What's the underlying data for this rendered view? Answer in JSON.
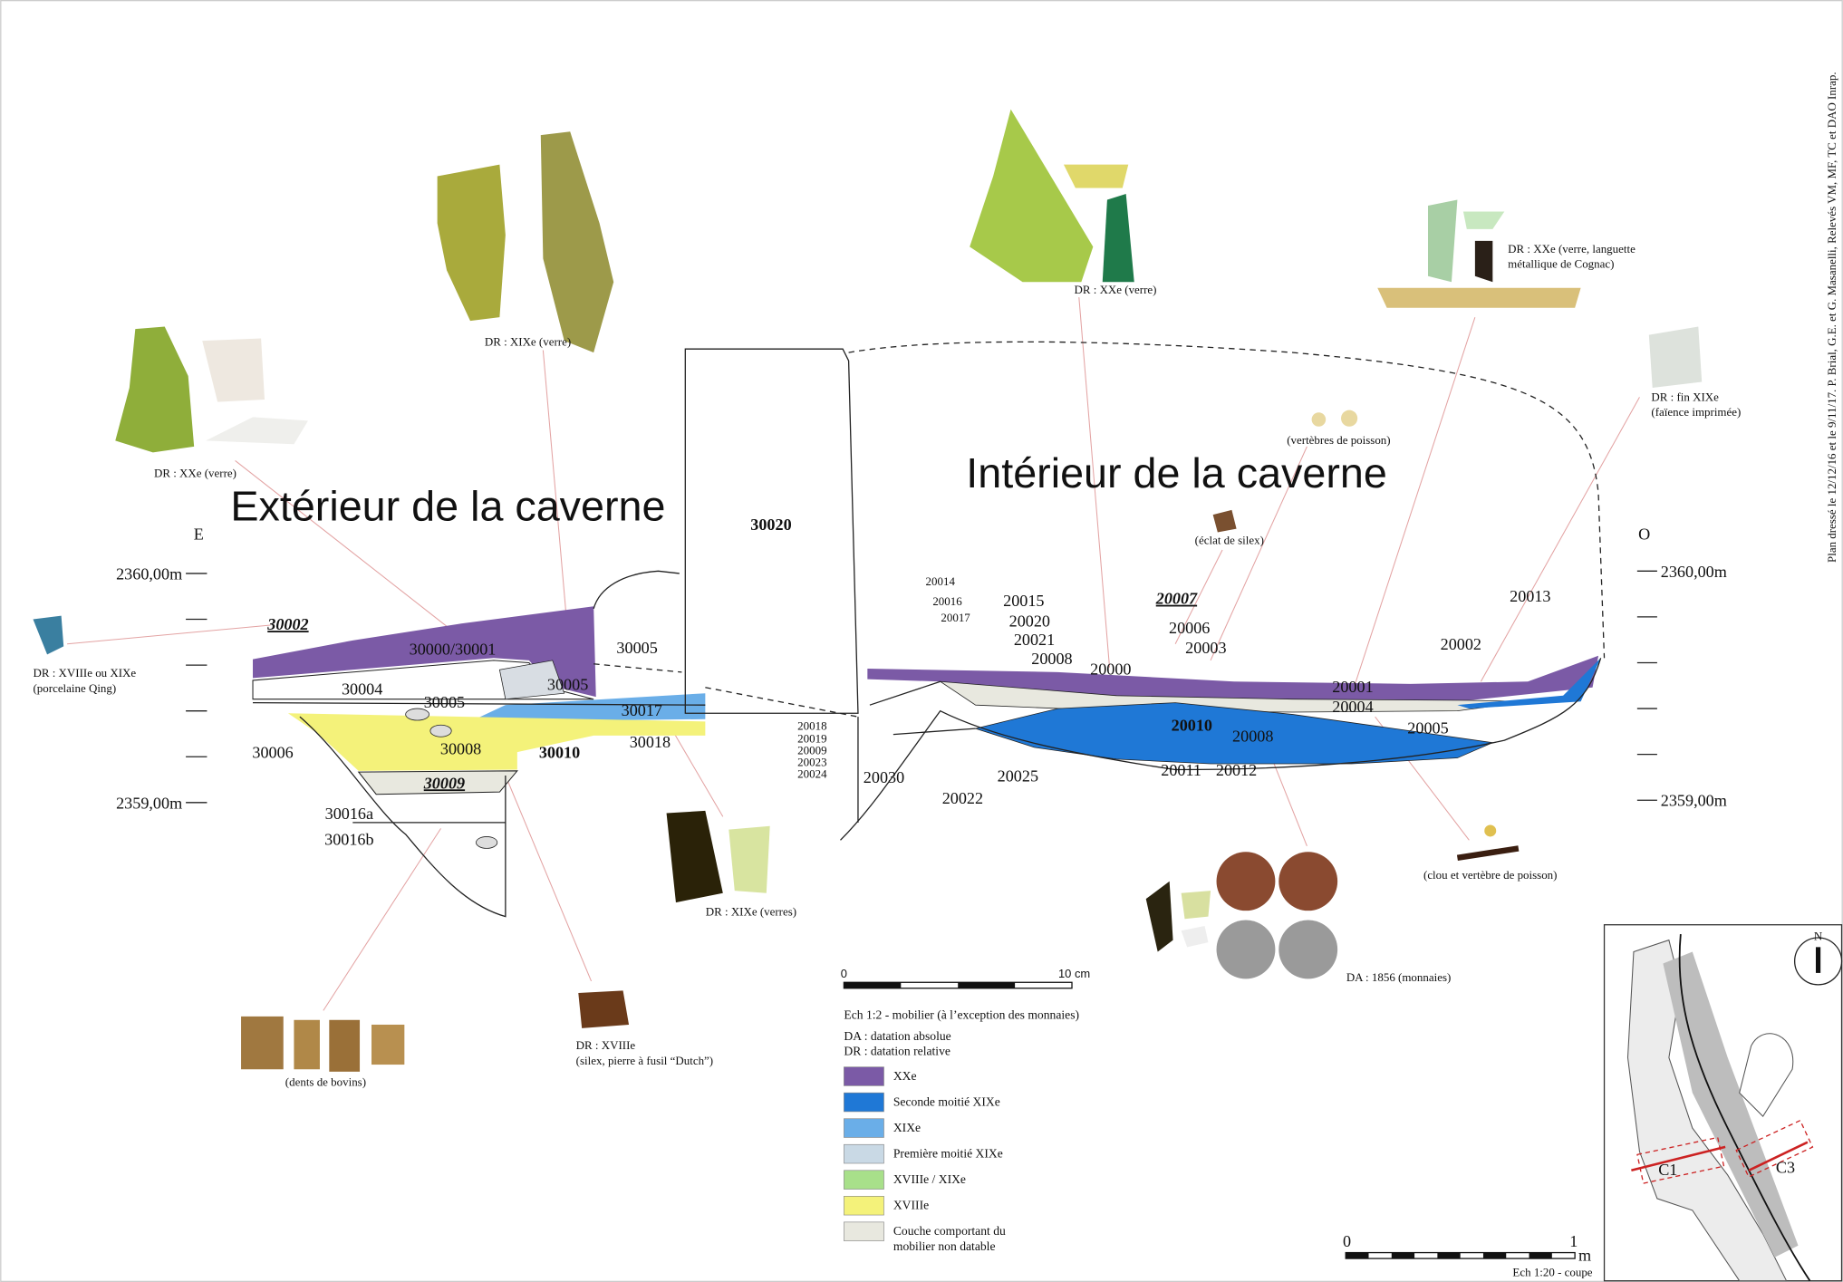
{
  "headings": {
    "exterior": "Extérieur de la caverne",
    "interior": "Intérieur de la caverne"
  },
  "orientation": {
    "east": "E",
    "west": "O"
  },
  "elevations": {
    "left": [
      "2360,00m",
      "2359,00m"
    ],
    "right": [
      "2360,00m",
      "2359,00m"
    ]
  },
  "units": [
    "30002",
    "30000/30001",
    "30005",
    "30004",
    "30005",
    "30005",
    "30017",
    "30006",
    "30008",
    "30010",
    "30018",
    "30009",
    "30016a",
    "30016b",
    "30020",
    "20014",
    "20016",
    "20017",
    "20015",
    "20020",
    "20021",
    "20008",
    "20000",
    "20007",
    "20006",
    "20003",
    "20002",
    "20013",
    "20001",
    "20004",
    "20005",
    "20010",
    "20008",
    "20018",
    "20019",
    "20009",
    "20023",
    "20024",
    "20030",
    "20025",
    "20022",
    "20011",
    "20012"
  ],
  "finds": [
    [
      "DR : XXe (verre)"
    ],
    [
      "DR : XIXe (verre)"
    ],
    [
      "DR : XXe (verre)"
    ],
    [
      "DR : XXe (verre, languette",
      "métallique de Cognac)"
    ],
    [
      "(vertèbres de poisson)"
    ],
    [
      "DR : fin XIXe",
      "(faïence imprimée)"
    ],
    [
      "(éclat de silex)"
    ],
    [
      "DR : XVIIIe ou XIXe",
      "(porcelaine Qing)"
    ],
    [
      "DR : XIXe (verres)"
    ],
    [
      "DA : 1856 (monnaies)"
    ],
    [
      "(clou et vertèbre de poisson)"
    ],
    [
      "(dents de bovins)"
    ],
    [
      "DR : XVIIIe",
      "(silex,  pierre à fusil “Dutch”)"
    ]
  ],
  "legend": {
    "scale": {
      "start": "0",
      "end": "10 cm"
    },
    "scale_note": "Ech 1:2 - mobilier (à l’exception des monnaies)",
    "notes": [
      "DA : datation absolue",
      "DR : datation relative"
    ],
    "items": [
      {
        "label": [
          "XXe"
        ],
        "color": "#7b5aa6"
      },
      {
        "label": [
          "Seconde moitié XIXe"
        ],
        "color": "#1f78d6"
      },
      {
        "label": [
          "XIXe"
        ],
        "color": "#6aaee8"
      },
      {
        "label": [
          "Première moitié XIXe"
        ],
        "color": "#c9d9e5"
      },
      {
        "label": [
          "XVIIIe / XIXe"
        ],
        "color": "#a8e08a"
      },
      {
        "label": [
          "XVIIIe"
        ],
        "color": "#f4f27a"
      },
      {
        "label": [
          "Couche comportant du",
          "mobilier non datable"
        ],
        "color": "#e8e8df"
      }
    ]
  },
  "section_scale": {
    "start": "0",
    "end": "1",
    "unit": "m",
    "note": "Ech 1:20 - coupe"
  },
  "map": {
    "north": "N",
    "cuts": [
      "C1",
      "C3"
    ]
  },
  "credit": "Plan dressé le 12/12/16 et le 9/11/17. P. Brial, G.E. et G. Masanelli, Relevés VM, MF, TC et DAO Inrap."
}
